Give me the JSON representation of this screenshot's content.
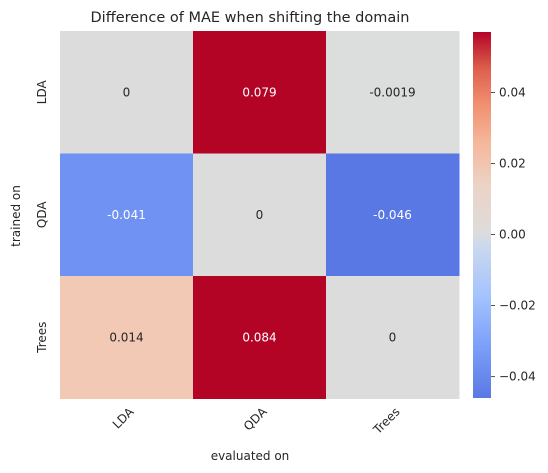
{
  "chart_data": {
    "type": "heatmap",
    "title": "Difference of MAE when shifting the domain",
    "xlabel": "evaluated on",
    "ylabel": "trained on",
    "x_categories": [
      "LDA",
      "QDA",
      "Trees"
    ],
    "y_categories": [
      "LDA",
      "QDA",
      "Trees"
    ],
    "values": [
      [
        0,
        0.079,
        -0.0019
      ],
      [
        -0.041,
        0,
        -0.046
      ],
      [
        0.014,
        0.084,
        0
      ]
    ],
    "annotations": [
      [
        "0",
        "0.079",
        "-0.0019"
      ],
      [
        "-0.041",
        "0",
        "-0.046"
      ],
      [
        "0.014",
        "0.084",
        "0"
      ]
    ],
    "colormap": "coolwarm",
    "color_range": [
      -0.046,
      0.057
    ],
    "colorbar_ticks": [
      "0.04",
      "0.02",
      "0.00",
      "−0.02",
      "−0.04"
    ],
    "colorbar_tick_values": [
      0.04,
      0.02,
      0.0,
      -0.02,
      -0.04
    ],
    "cell_colors": [
      [
        "#dddcdc",
        "#b40426",
        "#dcdddd"
      ],
      [
        "#6f92f3",
        "#dddcdc",
        "#5a78e4"
      ],
      [
        "#f2c9b4",
        "#b40426",
        "#dddcdc"
      ]
    ]
  }
}
